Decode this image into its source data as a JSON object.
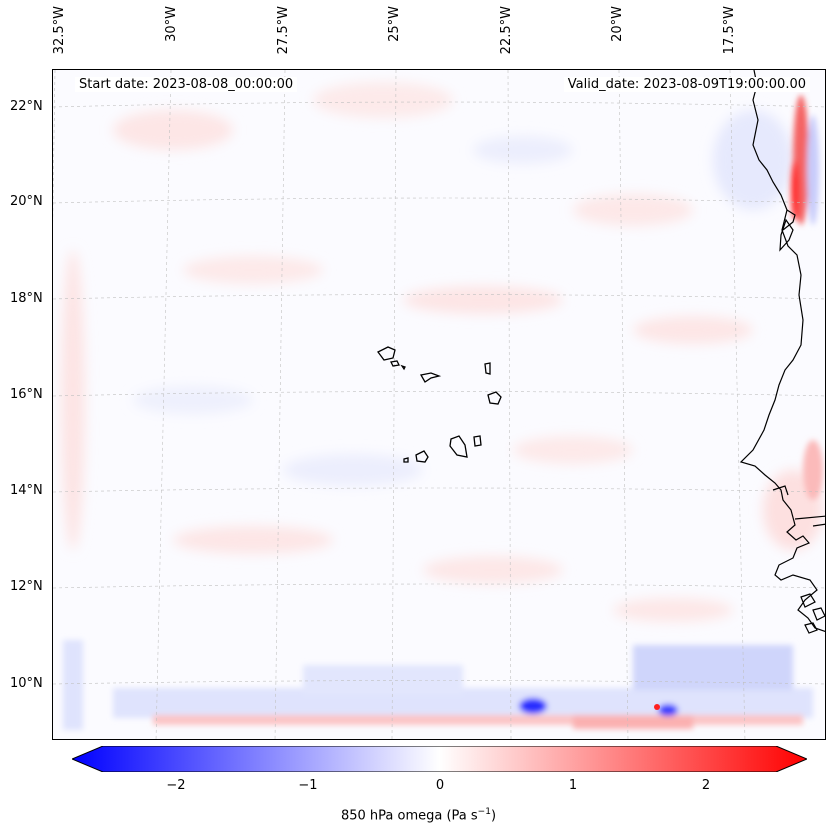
{
  "header": {
    "start_date": "Start date: 2023-08-08_00:00:00",
    "valid_date": "Valid_date: 2023-08-09T19:00:00.00"
  },
  "map": {
    "lon_labels": [
      "32.5°W",
      "30°W",
      "27.5°W",
      "25°W",
      "22.5°W",
      "20°W",
      "17.5°W"
    ],
    "lat_labels": [
      "22°N",
      "20°N",
      "18°N",
      "16°N",
      "14°N",
      "12°N",
      "10°N"
    ],
    "gridlines": true,
    "coastline_color": "#000000"
  },
  "colorbar": {
    "label": "850 hPa omega (Pa s",
    "label_sup": "−1",
    "label_end": ")",
    "ticks": [
      "−2",
      "−1",
      "0",
      "1",
      "2"
    ],
    "range": [
      -2.5,
      2.5
    ],
    "low_color": "#0000ff",
    "mid_color": "#ffffff",
    "high_color": "#ff0000"
  }
}
